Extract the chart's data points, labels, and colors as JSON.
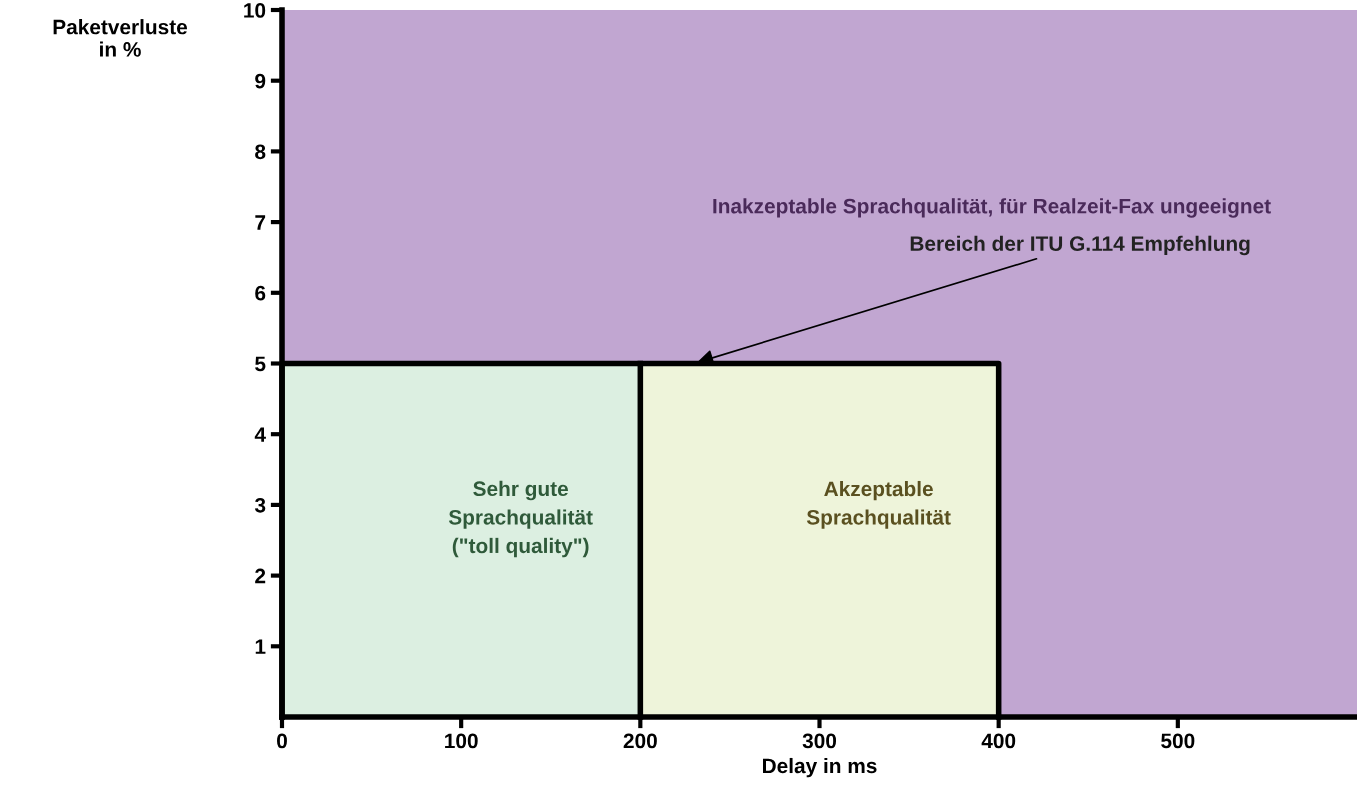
{
  "chart_data": {
    "type": "area",
    "xlabel": "Delay in ms",
    "ylabel": "Paketverluste\nin %",
    "xlim": [
      0,
      600
    ],
    "ylim": [
      0,
      10
    ],
    "xticks": [
      0,
      100,
      200,
      300,
      400,
      500
    ],
    "yticks": [
      1,
      2,
      3,
      4,
      5,
      6,
      7,
      8,
      9,
      10
    ],
    "grid": false,
    "legend": false,
    "bands": [
      {
        "axis": "y",
        "from": 0,
        "to": 10,
        "color": "#c1a6d1",
        "label": "Inakzeptable Sprachqualität, für Realzeit-Fax ungeeignet"
      }
    ],
    "series": [
      {
        "color": "#dcefe1",
        "x": [
          0,
          200
        ],
        "values": [
          5,
          5
        ]
      },
      {
        "color": "#eef4da",
        "x": [
          200,
          400
        ],
        "values": [
          5,
          5
        ]
      },
      {
        "type": "line",
        "color": "#000000",
        "x": [
          0,
          0,
          400,
          400
        ],
        "values": [
          0,
          5,
          5,
          0
        ]
      },
      {
        "type": "line",
        "color": "#000000",
        "x": [
          200,
          200
        ],
        "values": [
          0,
          5
        ]
      }
    ],
    "annotations": [
      {
        "text": "Bereich der ITU G.114 Empfehlung",
        "x": 230,
        "y": 5
      },
      "Sehr gute\nSprachqualität\n(\"toll quality\")",
      "Akzeptable\nSprachqualität"
    ]
  }
}
